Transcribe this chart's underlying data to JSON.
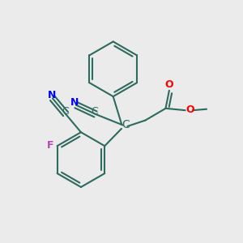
{
  "bg_color": "#ebebeb",
  "bond_color": "#2d6b5e",
  "bond_width": 1.5,
  "dbo": 0.013,
  "figsize": [
    3.0,
    3.0
  ],
  "dpi": 100,
  "xlim": [
    0,
    1
  ],
  "ylim": [
    0,
    1
  ]
}
